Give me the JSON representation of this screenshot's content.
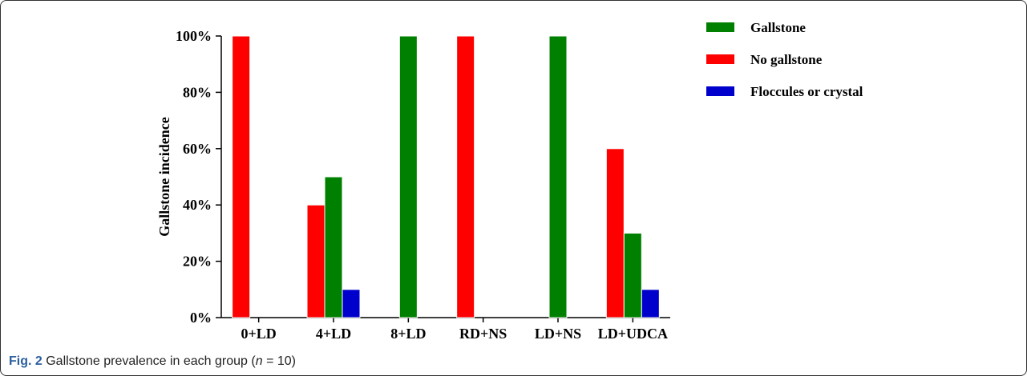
{
  "chart_data": {
    "type": "bar",
    "categories": [
      "0+LD",
      "4+LD",
      "8+LD",
      "RD+NS",
      "LD+NS",
      "LD+UDCA"
    ],
    "series": [
      {
        "name": "No gallstone",
        "color": "#ff0000",
        "values": [
          100,
          40,
          0,
          100,
          0,
          60
        ]
      },
      {
        "name": "Gallstone",
        "color": "#008000",
        "values": [
          0,
          50,
          100,
          0,
          100,
          30
        ]
      },
      {
        "name": "Floccules or crystal",
        "color": "#0000cc",
        "values": [
          0,
          10,
          0,
          0,
          0,
          10
        ]
      }
    ],
    "legend_order": [
      "Gallstone",
      "No gallstone",
      "Floccules or crystal"
    ],
    "legend_position": "top-right",
    "ylabel": "Gallstone incidence",
    "xlabel": "",
    "ylim": [
      0,
      100
    ],
    "yticks": [
      "0%",
      "20%",
      "40%",
      "60%",
      "80%",
      "100%"
    ],
    "ytick_values": [
      0,
      20,
      40,
      60,
      80,
      100
    ],
    "grid": false
  },
  "caption": {
    "fig_label": "Fig. 2",
    "text_before": " Gallstone prevalence in each group (",
    "n_symbol": "n",
    "text_after": " = 10)"
  }
}
